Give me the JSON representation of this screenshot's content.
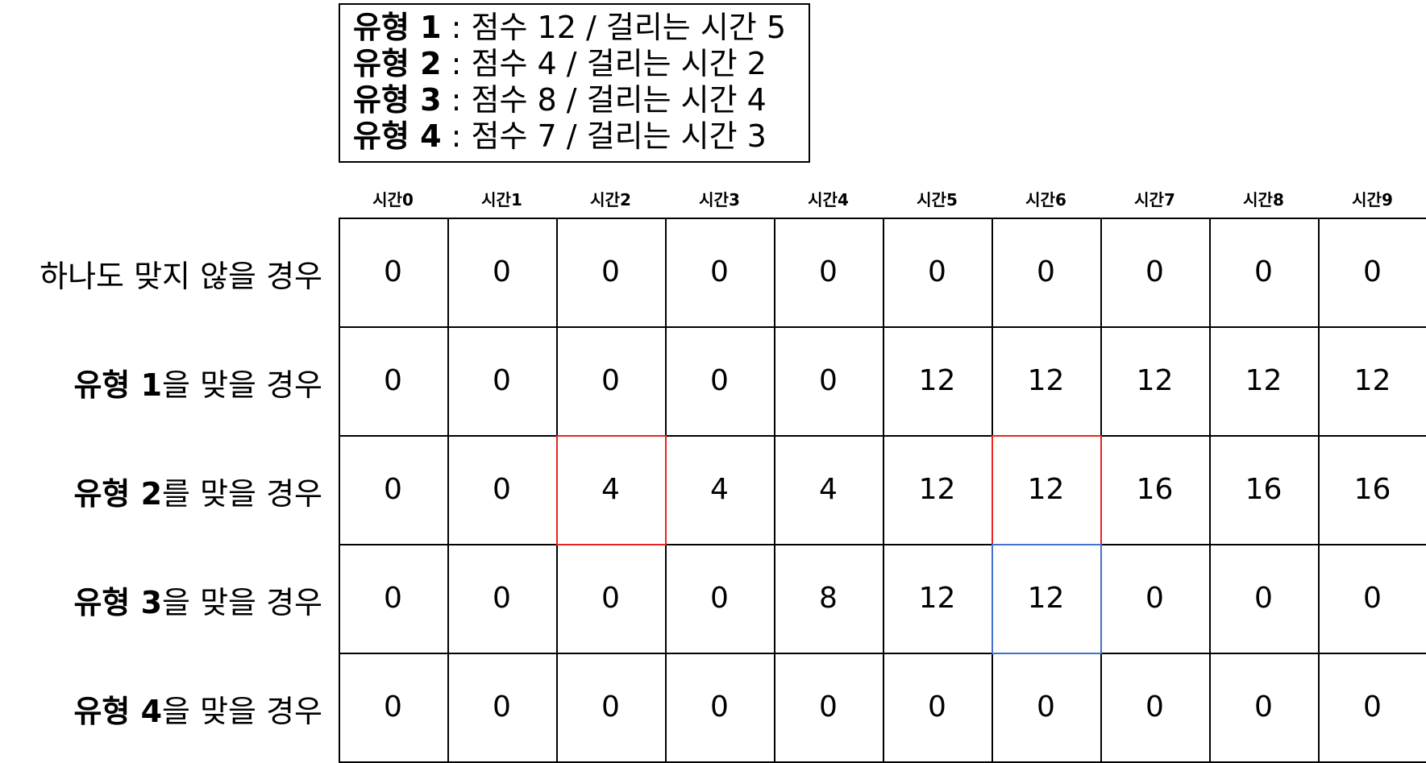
{
  "legend": [
    {
      "name": "유형 1",
      "desc": " : 점수 12 / 걸리는 시간 5"
    },
    {
      "name": "유형 2",
      "desc": " : 점수 4 / 걸리는 시간 2"
    },
    {
      "name": "유형 3",
      "desc": " : 점수 8 / 걸리는 시간 4"
    },
    {
      "name": "유형 4",
      "desc": " : 점수 7 / 걸리는 시간 3"
    }
  ],
  "columns": [
    "시간0",
    "시간1",
    "시간2",
    "시간3",
    "시간4",
    "시간5",
    "시간6",
    "시간7",
    "시간8",
    "시간9"
  ],
  "rows": [
    {
      "name": "",
      "rest": "하나도 맞지 않을 경우",
      "values": [
        "0",
        "0",
        "0",
        "0",
        "0",
        "0",
        "0",
        "0",
        "0",
        "0"
      ]
    },
    {
      "name": "유형 1",
      "rest": "을 맞을 경우",
      "values": [
        "0",
        "0",
        "0",
        "0",
        "0",
        "12",
        "12",
        "12",
        "12",
        "12"
      ]
    },
    {
      "name": "유형 2",
      "rest": "를 맞을 경우",
      "values": [
        "0",
        "0",
        "4",
        "4",
        "4",
        "12",
        "12",
        "16",
        "16",
        "16"
      ]
    },
    {
      "name": "유형 3",
      "rest": "을 맞을 경우",
      "values": [
        "0",
        "0",
        "0",
        "0",
        "8",
        "12",
        "12",
        "0",
        "0",
        "0"
      ]
    },
    {
      "name": "유형 4",
      "rest": "을 맞을 경우",
      "values": [
        "0",
        "0",
        "0",
        "0",
        "0",
        "0",
        "0",
        "0",
        "0",
        "0"
      ]
    }
  ],
  "highlights": [
    {
      "row": 2,
      "col": 2,
      "color": "#e8241d"
    },
    {
      "row": 2,
      "col": 6,
      "color": "#e8241d"
    },
    {
      "row": 3,
      "col": 6,
      "color": "#3f72c8"
    }
  ]
}
